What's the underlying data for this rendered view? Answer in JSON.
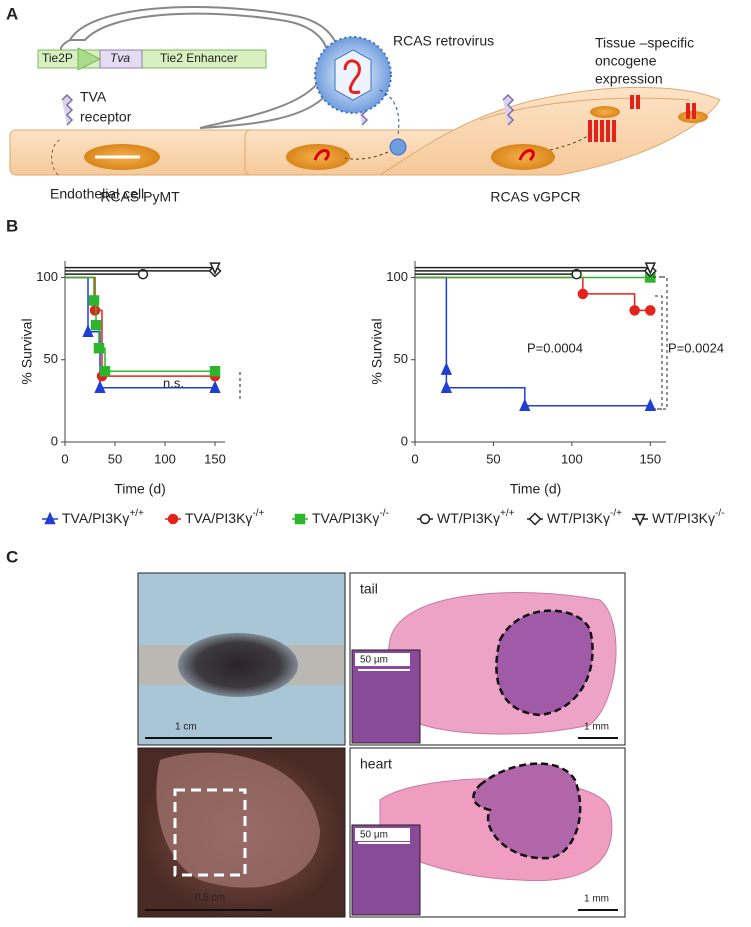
{
  "panel_a": {
    "label": "A",
    "promoter": "Tie2P",
    "gene": "Tva",
    "enhancer": "Tie2 Enhancer",
    "receptor": [
      "TVA",
      "receptor"
    ],
    "cell": "Endothelial cell",
    "virus": "RCAS retrovirus",
    "expression": [
      "Tissue –specific",
      "oncogene",
      "expression"
    ]
  },
  "panel_b": {
    "label": "B"
  },
  "chart_data": [
    {
      "type": "step",
      "title": "RCAS PyMT",
      "xlabel": "Time (d)",
      "ylabel": "% Survival",
      "xlim": [
        0,
        160
      ],
      "ylim": [
        0,
        110
      ],
      "xticks": [
        0,
        50,
        100,
        150
      ],
      "yticks": [
        0,
        50,
        100
      ],
      "annotations": [
        "n.s."
      ],
      "series": [
        {
          "name": "TVA/PI3Kγ",
          "sup": "+/+",
          "color": "#1f3fd6",
          "marker": "triangle-up",
          "filled": true,
          "x": [
            0,
            23,
            35,
            150
          ],
          "values": [
            100,
            67,
            33,
            33
          ]
        },
        {
          "name": "TVA/PI3Kγ",
          "sup": "-/+",
          "color": "#e3231b",
          "marker": "circle",
          "filled": true,
          "x": [
            0,
            30,
            37,
            150
          ],
          "values": [
            100,
            80,
            40,
            40
          ]
        },
        {
          "name": "TVA/PI3Kγ",
          "sup": "-/-",
          "color": "#2db52d",
          "marker": "square",
          "filled": true,
          "x": [
            0,
            29,
            31,
            34,
            40,
            150
          ],
          "values": [
            100,
            86,
            71,
            57,
            43,
            43
          ]
        },
        {
          "name": "WT/PI3Kγ",
          "sup": "+/+",
          "color": "#222222",
          "marker": "circle",
          "filled": false,
          "x": [
            0,
            78
          ],
          "values": [
            102,
            102
          ]
        },
        {
          "name": "WT/PI3Kγ",
          "sup": "-/+",
          "color": "#222222",
          "marker": "diamond",
          "filled": false,
          "x": [
            0,
            150
          ],
          "values": [
            104,
            104
          ]
        },
        {
          "name": "WT/PI3Kγ",
          "sup": "-/-",
          "color": "#222222",
          "marker": "triangle-down",
          "filled": false,
          "x": [
            0,
            150
          ],
          "values": [
            106,
            106
          ]
        }
      ]
    },
    {
      "type": "step",
      "title": "RCAS vGPCR",
      "xlabel": "Time (d)",
      "ylabel": "% Survival",
      "xlim": [
        0,
        160
      ],
      "ylim": [
        0,
        110
      ],
      "xticks": [
        0,
        50,
        100,
        150
      ],
      "yticks": [
        0,
        50,
        100
      ],
      "annotations": [
        "P=0.0004",
        "P=0.0024"
      ],
      "series": [
        {
          "color": "#1f3fd6",
          "marker": "triangle-up",
          "filled": true,
          "x": [
            0,
            20,
            20,
            70,
            150
          ],
          "values": [
            100,
            44,
            33,
            22,
            22
          ]
        },
        {
          "color": "#e3231b",
          "marker": "circle",
          "filled": true,
          "x": [
            0,
            107,
            140,
            150
          ],
          "values": [
            100,
            90,
            80,
            80
          ]
        },
        {
          "color": "#2db52d",
          "marker": "square",
          "filled": true,
          "x": [
            0,
            150
          ],
          "values": [
            100,
            100
          ]
        },
        {
          "color": "#222222",
          "marker": "circle",
          "filled": false,
          "x": [
            0,
            103
          ],
          "values": [
            102,
            102
          ]
        },
        {
          "color": "#222222",
          "marker": "diamond",
          "filled": false,
          "x": [
            0,
            150
          ],
          "values": [
            104,
            104
          ]
        },
        {
          "color": "#222222",
          "marker": "triangle-down",
          "filled": false,
          "x": [
            0,
            150
          ],
          "values": [
            106,
            106
          ]
        }
      ]
    }
  ],
  "panel_c": {
    "label": "C",
    "tail_scale": "1 cm",
    "heart_scale": "0.5 cm",
    "tail": "tail",
    "heart": "heart",
    "inset_scale_top": "50 µm",
    "inset_scale_bottom": "50 µm",
    "section_scale_top": "1 mm",
    "section_scale_bottom": "1 mm"
  }
}
